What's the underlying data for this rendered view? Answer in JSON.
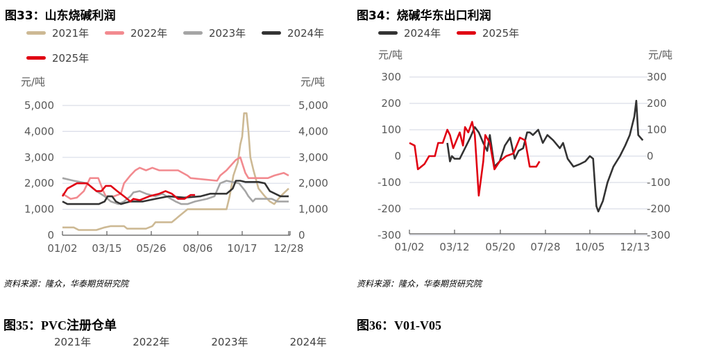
{
  "colors": {
    "2021": "#cdb994",
    "2022": "#f28a8f",
    "2023": "#a5a5a5",
    "2024": "#333333",
    "2025": "#e00012",
    "grid": "#d9dde8",
    "axis": "#595959"
  },
  "chart_data": [
    {
      "type": "line",
      "title": "图33：山东烧碱利润",
      "ylabel_left": "元/吨",
      "ylabel_right": "元/吨",
      "ylim": [
        0,
        5000
      ],
      "yticks": [
        "0",
        "1,000",
        "2,000",
        "3,000",
        "4,000",
        "5,000"
      ],
      "yticks_right": [
        "0",
        "1,000",
        "2,000",
        "3,000",
        "4,000",
        "5,000"
      ],
      "x_range": [
        "01/02",
        "12/28"
      ],
      "xticks": [
        "01/02",
        "03/15",
        "05/26",
        "08/06",
        "10/17",
        "12/28"
      ],
      "grid": true,
      "legend_position": "top",
      "series": [
        {
          "name": "2021年",
          "key": "2021",
          "points": [
            [
              "01/02",
              300
            ],
            [
              "01/20",
              300
            ],
            [
              "01/28",
              200
            ],
            [
              "02/25",
              200
            ],
            [
              "03/10",
              300
            ],
            [
              "03/20",
              350
            ],
            [
              "04/10",
              350
            ],
            [
              "04/15",
              250
            ],
            [
              "05/15",
              250
            ],
            [
              "05/25",
              350
            ],
            [
              "05/30",
              500
            ],
            [
              "06/25",
              500
            ],
            [
              "07/05",
              700
            ],
            [
              "07/20",
              1000
            ],
            [
              "09/20",
              1000
            ],
            [
              "09/25",
              1500
            ],
            [
              "10/01",
              2300
            ],
            [
              "10/08",
              2800
            ],
            [
              "10/12",
              3500
            ],
            [
              "10/15",
              3800
            ],
            [
              "10/18",
              4700
            ],
            [
              "10/22",
              4700
            ],
            [
              "10/25",
              4000
            ],
            [
              "10/28",
              3000
            ],
            [
              "11/02",
              2500
            ],
            [
              "11/10",
              1800
            ],
            [
              "11/20",
              1500
            ],
            [
              "11/28",
              1300
            ],
            [
              "12/05",
              1200
            ],
            [
              "12/15",
              1500
            ],
            [
              "12/28",
              1800
            ]
          ]
        },
        {
          "name": "2022年",
          "key": "2022",
          "points": [
            [
              "01/02",
              1600
            ],
            [
              "01/15",
              1400
            ],
            [
              "01/25",
              1450
            ],
            [
              "02/05",
              1700
            ],
            [
              "02/15",
              2200
            ],
            [
              "02/28",
              2200
            ],
            [
              "03/08",
              1700
            ],
            [
              "03/12",
              1500
            ],
            [
              "03/25",
              1500
            ],
            [
              "04/05",
              1600
            ],
            [
              "04/10",
              2000
            ],
            [
              "04/20",
              2300
            ],
            [
              "04/28",
              2500
            ],
            [
              "05/05",
              2600
            ],
            [
              "05/15",
              2500
            ],
            [
              "05/25",
              2600
            ],
            [
              "06/05",
              2500
            ],
            [
              "07/05",
              2500
            ],
            [
              "07/20",
              2300
            ],
            [
              "07/25",
              2200
            ],
            [
              "09/05",
              2100
            ],
            [
              "09/10",
              2300
            ],
            [
              "09/20",
              2500
            ],
            [
              "10/05",
              2900
            ],
            [
              "10/12",
              3000
            ],
            [
              "10/20",
              2400
            ],
            [
              "10/25",
              2200
            ],
            [
              "11/25",
              2200
            ],
            [
              "12/05",
              2300
            ],
            [
              "12/20",
              2400
            ],
            [
              "12/28",
              2300
            ]
          ]
        },
        {
          "name": "2023年",
          "key": "2023",
          "points": [
            [
              "01/02",
              2200
            ],
            [
              "01/20",
              2100
            ],
            [
              "02/10",
              2000
            ],
            [
              "02/25",
              1700
            ],
            [
              "03/10",
              1500
            ],
            [
              "03/20",
              1300
            ],
            [
              "04/01",
              1200
            ],
            [
              "04/10",
              1300
            ],
            [
              "04/20",
              1500
            ],
            [
              "04/25",
              1650
            ],
            [
              "05/05",
              1700
            ],
            [
              "05/15",
              1600
            ],
            [
              "05/30",
              1500
            ],
            [
              "06/10",
              1600
            ],
            [
              "06/20",
              1450
            ],
            [
              "07/01",
              1300
            ],
            [
              "07/10",
              1200
            ],
            [
              "07/20",
              1200
            ],
            [
              "08/01",
              1300
            ],
            [
              "08/20",
              1400
            ],
            [
              "09/01",
              1500
            ],
            [
              "09/10",
              2000
            ],
            [
              "09/20",
              2100
            ],
            [
              "10/10",
              2000
            ],
            [
              "10/20",
              1700
            ],
            [
              "10/25",
              1500
            ],
            [
              "11/01",
              1300
            ],
            [
              "11/05",
              1400
            ],
            [
              "12/01",
              1400
            ],
            [
              "12/10",
              1300
            ],
            [
              "12/28",
              1300
            ]
          ]
        },
        {
          "name": "2024年",
          "key": "2024",
          "points": [
            [
              "01/02",
              1300
            ],
            [
              "01/10",
              1200
            ],
            [
              "03/01",
              1200
            ],
            [
              "03/10",
              1300
            ],
            [
              "03/15",
              1500
            ],
            [
              "03/22",
              1500
            ],
            [
              "03/28",
              1300
            ],
            [
              "04/05",
              1200
            ],
            [
              "04/20",
              1300
            ],
            [
              "05/10",
              1300
            ],
            [
              "05/30",
              1400
            ],
            [
              "06/20",
              1500
            ],
            [
              "07/15",
              1450
            ],
            [
              "08/10",
              1500
            ],
            [
              "08/25",
              1600
            ],
            [
              "09/20",
              1600
            ],
            [
              "09/30",
              1800
            ],
            [
              "10/05",
              2100
            ],
            [
              "10/12",
              2100
            ],
            [
              "10/20",
              2050
            ],
            [
              "11/10",
              2050
            ],
            [
              "11/20",
              2000
            ],
            [
              "11/28",
              1700
            ],
            [
              "12/15",
              1500
            ],
            [
              "12/28",
              1500
            ]
          ]
        },
        {
          "name": "2025年",
          "key": "2025",
          "points": [
            [
              "01/02",
              1500
            ],
            [
              "01/10",
              1800
            ],
            [
              "01/25",
              2000
            ],
            [
              "02/10",
              2000
            ],
            [
              "02/15",
              1900
            ],
            [
              "02/25",
              1700
            ],
            [
              "03/05",
              1700
            ],
            [
              "03/12",
              1900
            ],
            [
              "03/20",
              1900
            ],
            [
              "03/30",
              1700
            ],
            [
              "04/10",
              1500
            ],
            [
              "04/15",
              1400
            ],
            [
              "04/20",
              1300
            ],
            [
              "04/25",
              1400
            ],
            [
              "05/05",
              1350
            ],
            [
              "05/20",
              1500
            ],
            [
              "06/05",
              1600
            ],
            [
              "06/15",
              1700
            ],
            [
              "06/25",
              1600
            ],
            [
              "07/05",
              1400
            ],
            [
              "07/15",
              1400
            ],
            [
              "07/25",
              1550
            ],
            [
              "08/01",
              1550
            ]
          ]
        }
      ],
      "source": "资料来源：隆众，华泰期货研究院"
    },
    {
      "type": "line",
      "title": "图34：烧碱华东出口利润",
      "ylabel_left": "元/吨",
      "ylabel_right": "元/吨",
      "ylim": [
        -300,
        300
      ],
      "yticks": [
        "-300",
        "-200",
        "-100",
        "0",
        "100",
        "200",
        "300"
      ],
      "yticks_right": [
        "-300",
        "-200",
        "-100",
        "0",
        "100",
        "200",
        "300"
      ],
      "x_range": [
        "01/02",
        "12/31"
      ],
      "xticks": [
        "01/02",
        "03/12",
        "05/20",
        "07/28",
        "10/05",
        "12/13"
      ],
      "grid": true,
      "legend_position": "top",
      "series": [
        {
          "name": "2024年",
          "key": "2024",
          "points": [
            [
              "03/01",
              50
            ],
            [
              "03/05",
              -20
            ],
            [
              "03/08",
              0
            ],
            [
              "03/12",
              -10
            ],
            [
              "03/20",
              -10
            ],
            [
              "03/28",
              30
            ],
            [
              "04/05",
              70
            ],
            [
              "04/12",
              110
            ],
            [
              "04/18",
              90
            ],
            [
              "04/25",
              50
            ],
            [
              "05/01",
              20
            ],
            [
              "05/05",
              80
            ],
            [
              "05/12",
              -40
            ],
            [
              "05/20",
              -20
            ],
            [
              "05/28",
              40
            ],
            [
              "06/05",
              70
            ],
            [
              "06/12",
              -10
            ],
            [
              "06/18",
              20
            ],
            [
              "06/25",
              30
            ],
            [
              "07/01",
              90
            ],
            [
              "07/05",
              90
            ],
            [
              "07/10",
              80
            ],
            [
              "07/18",
              100
            ],
            [
              "07/25",
              50
            ],
            [
              "08/01",
              80
            ],
            [
              "08/10",
              60
            ],
            [
              "08/20",
              30
            ],
            [
              "08/25",
              50
            ],
            [
              "09/01",
              -10
            ],
            [
              "09/10",
              -40
            ],
            [
              "09/20",
              -30
            ],
            [
              "09/28",
              -20
            ],
            [
              "10/05",
              0
            ],
            [
              "10/10",
              -10
            ],
            [
              "10/15",
              -190
            ],
            [
              "10/18",
              -210
            ],
            [
              "10/25",
              -170
            ],
            [
              "11/01",
              -100
            ],
            [
              "11/10",
              -40
            ],
            [
              "11/20",
              0
            ],
            [
              "11/28",
              40
            ],
            [
              "12/05",
              80
            ],
            [
              "12/12",
              150
            ],
            [
              "12/15",
              210
            ],
            [
              "12/18",
              80
            ],
            [
              "12/25",
              60
            ]
          ]
        },
        {
          "name": "2025年",
          "key": "2025",
          "points": [
            [
              "01/02",
              50
            ],
            [
              "01/10",
              40
            ],
            [
              "01/15",
              -50
            ],
            [
              "01/20",
              -40
            ],
            [
              "01/25",
              -30
            ],
            [
              "02/01",
              0
            ],
            [
              "02/10",
              0
            ],
            [
              "02/15",
              50
            ],
            [
              "02/22",
              50
            ],
            [
              "03/01",
              100
            ],
            [
              "03/05",
              80
            ],
            [
              "03/10",
              30
            ],
            [
              "03/15",
              60
            ],
            [
              "03/20",
              90
            ],
            [
              "03/25",
              40
            ],
            [
              "03/28",
              110
            ],
            [
              "04/02",
              90
            ],
            [
              "04/08",
              130
            ],
            [
              "04/12",
              80
            ],
            [
              "04/18",
              -150
            ],
            [
              "04/25",
              -20
            ],
            [
              "04/28",
              80
            ],
            [
              "05/05",
              50
            ],
            [
              "05/12",
              -50
            ],
            [
              "05/20",
              -20
            ],
            [
              "05/30",
              0
            ],
            [
              "06/10",
              10
            ],
            [
              "06/20",
              70
            ],
            [
              "06/28",
              60
            ],
            [
              "07/05",
              -40
            ],
            [
              "07/15",
              -40
            ],
            [
              "07/20",
              -20
            ]
          ]
        }
      ],
      "source": "资料来源：隆众，华泰期货研究院"
    }
  ],
  "figure35": {
    "title": "图35：PVC注册仓单",
    "legend": [
      "2021年",
      "2022年",
      "2023年",
      "2024年"
    ]
  },
  "figure36": {
    "title": "图36：V01-V05"
  }
}
